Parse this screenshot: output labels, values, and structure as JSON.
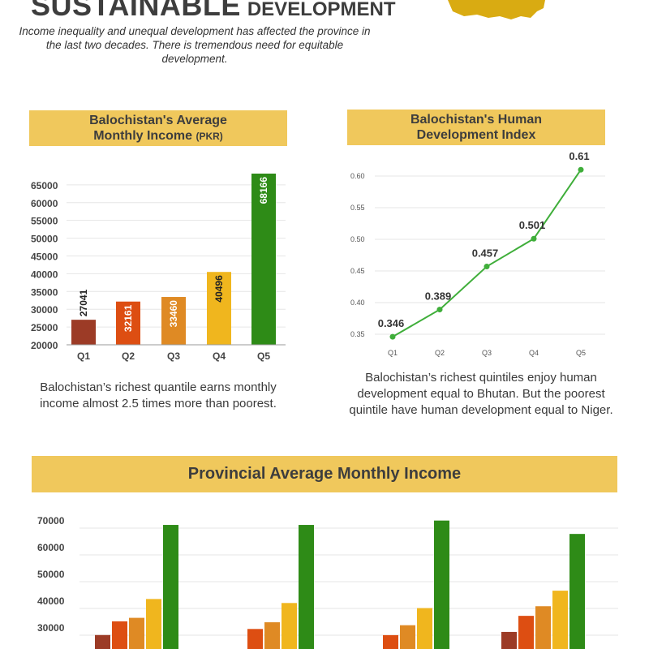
{
  "header": {
    "title_big": "SUSTAINABLE",
    "title_small": "DEVELOPMENT",
    "intro": "Income inequality and unequal development has affected the province in the last two decades. There is tremendous need for equitable development."
  },
  "colors": {
    "banner": "#f0c85c",
    "q1": "#9c3b26",
    "q2": "#dd4e12",
    "q3": "#df8a24",
    "q4": "#f0b61e",
    "q5": "#2e8b17",
    "line": "#3fae3a"
  },
  "income_panel": {
    "title_line1": "Balochistan's Average",
    "title_line2": "Monthly Income",
    "title_unit": "(PKR)",
    "caption": "Balochistan’s richest quantile earns monthly income almost 2.5 times more than poorest."
  },
  "hdi_panel": {
    "title_line1": "Balochistan's Human",
    "title_line2": "Development Index",
    "caption": "Balochistan’s richest quintiles enjoy human development equal to Bhutan. But the poorest quintile have human development equal to Niger."
  },
  "provincial_panel": {
    "title": "Provincial Average Monthly Income"
  },
  "chart_data": [
    {
      "type": "bar",
      "categories": [
        "Q1",
        "Q2",
        "Q3",
        "Q4",
        "Q5"
      ],
      "values": [
        27041,
        32161,
        33460,
        40496,
        68166
      ],
      "value_labels": [
        "27041",
        "32161",
        "33460",
        "40496",
        "68166"
      ],
      "title": "Balochistan's Average Monthly Income (PKR)",
      "ylim": [
        20000,
        68166
      ],
      "yticks": [
        20000,
        25000,
        30000,
        35000,
        40000,
        45000,
        50000,
        55000,
        60000,
        65000
      ],
      "ytick_labels": [
        "20000",
        "25000",
        "30000",
        "35000",
        "40000",
        "45000",
        "50000",
        "55000",
        "60000",
        "65000"
      ],
      "grid": true
    },
    {
      "type": "line",
      "categories": [
        "Q1",
        "Q2",
        "Q3",
        "Q4",
        "Q5"
      ],
      "values": [
        0.346,
        0.389,
        0.457,
        0.501,
        0.61
      ],
      "value_labels": [
        "0.346",
        "0.389",
        "0.457",
        "0.501",
        "0.61"
      ],
      "title": "Balochistan's Human Development Index",
      "ylim": [
        0.33,
        0.62
      ],
      "yticks": [
        0.35,
        0.4,
        0.45,
        0.5,
        0.55,
        0.6
      ],
      "ytick_labels": [
        "0.35",
        "0.40",
        "0.45",
        "0.50",
        "0.55",
        "0.60"
      ],
      "grid": true
    },
    {
      "type": "bar",
      "title": "Provincial Average Monthly Income",
      "groups": [
        {
          "values": [
            27041,
            32161,
            33460,
            40496,
            68166
          ]
        },
        {
          "values": [
            null,
            29300,
            31800,
            39000,
            68166
          ]
        },
        {
          "values": [
            null,
            27000,
            30700,
            37100,
            69800
          ]
        },
        {
          "values": [
            28200,
            34200,
            37800,
            43600,
            64800
          ]
        }
      ],
      "yticks": [
        30000,
        40000,
        50000,
        60000,
        70000
      ],
      "ytick_labels": [
        "30000",
        "40000",
        "50000",
        "60000",
        "70000"
      ],
      "grid": true
    }
  ]
}
